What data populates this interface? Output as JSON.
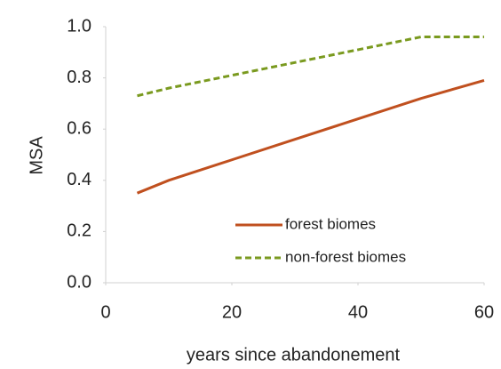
{
  "chart_data": {
    "type": "line",
    "x_label": "years since abandonement",
    "y_label": "MSA",
    "x": [
      5,
      10,
      20,
      30,
      40,
      50,
      60
    ],
    "series": [
      {
        "name": "forest biomes",
        "color": "#c0501f",
        "dash": false,
        "values": [
          0.35,
          0.4,
          0.48,
          0.56,
          0.64,
          0.72,
          0.79
        ]
      },
      {
        "name": "non-forest biomes",
        "color": "#7a9a1f",
        "dash": true,
        "values": [
          0.73,
          0.76,
          0.81,
          0.86,
          0.91,
          0.96,
          0.96
        ]
      }
    ],
    "xlim": [
      0,
      60
    ],
    "xticks": [
      0,
      20,
      40,
      60
    ],
    "ylim": [
      0,
      1.0
    ],
    "yticks": [
      {
        "value": 0,
        "label": "0.0"
      },
      0.2,
      0.4,
      0.6,
      0.8,
      {
        "value": 1.0,
        "label": "1.0"
      }
    ],
    "grid": false,
    "legend": "lower right"
  }
}
